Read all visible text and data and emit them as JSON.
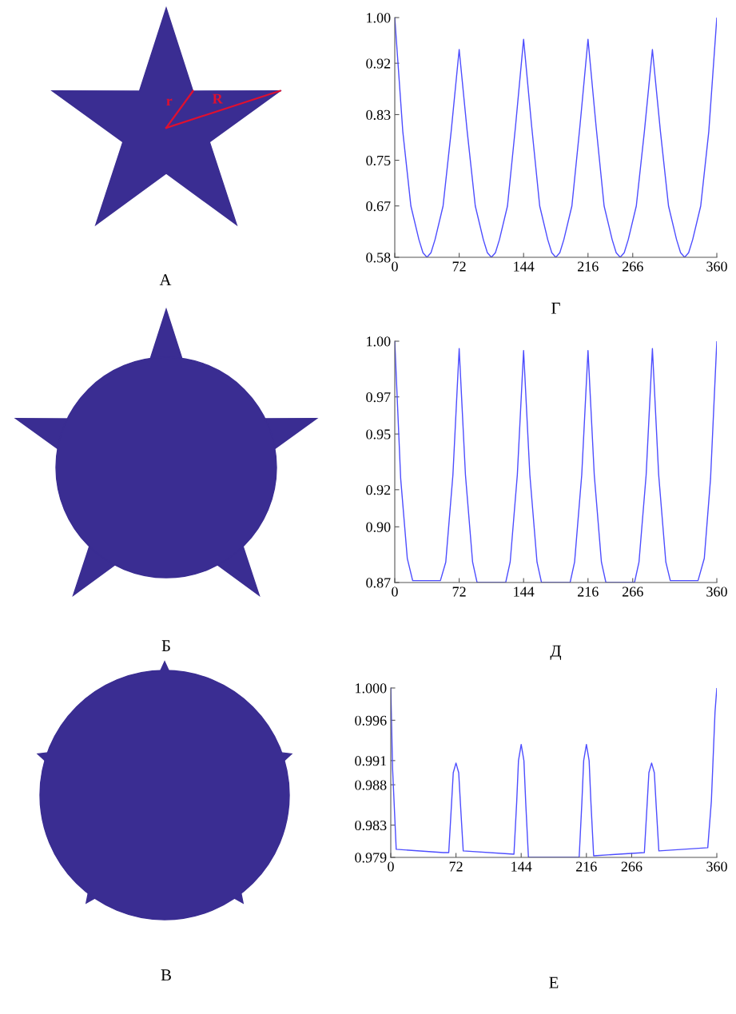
{
  "chart_data": [
    {
      "type": "line",
      "xlabel": "Г",
      "annotations": [
        "А",
        "r",
        "R"
      ],
      "xlim": [
        0,
        360
      ],
      "ylim": [
        0.58,
        1.0
      ],
      "xticks": [
        0,
        72,
        144,
        216,
        266,
        360
      ],
      "yticks": [
        {
          "value": 0.58,
          "label": "0.58"
        },
        {
          "value": 0.67,
          "label": "0.67"
        },
        {
          "value": 0.75,
          "label": "0.75"
        },
        {
          "value": 0.83,
          "label": "0.83"
        },
        {
          "value": 0.92,
          "label": "0.92"
        },
        {
          "value": 1.0,
          "label": "1.00"
        }
      ],
      "series": [
        {
          "color": "#4d4dff",
          "x": [
            0,
            9,
            18,
            27,
            31.5,
            36,
            40.5,
            45,
            54,
            63,
            72,
            81,
            90,
            99,
            103.5,
            108,
            112.5,
            117,
            126,
            135,
            144,
            153,
            162,
            171,
            175.5,
            180,
            184.5,
            189,
            198,
            207,
            216,
            225,
            234,
            243,
            247.5,
            252,
            256.5,
            261,
            270,
            279,
            288,
            297,
            306,
            315,
            319.5,
            324,
            328.5,
            333,
            342,
            351,
            360
          ],
          "values": [
            1.0,
            0.8,
            0.67,
            0.611,
            0.588,
            0.58,
            0.588,
            0.611,
            0.67,
            0.8,
            0.944,
            0.8,
            0.67,
            0.611,
            0.588,
            0.58,
            0.588,
            0.611,
            0.67,
            0.81,
            0.962,
            0.81,
            0.67,
            0.611,
            0.588,
            0.58,
            0.588,
            0.611,
            0.67,
            0.81,
            0.962,
            0.81,
            0.67,
            0.611,
            0.588,
            0.58,
            0.588,
            0.611,
            0.67,
            0.8,
            0.944,
            0.8,
            0.67,
            0.611,
            0.588,
            0.58,
            0.588,
            0.611,
            0.67,
            0.8,
            1.0
          ]
        }
      ]
    },
    {
      "type": "line",
      "xlabel": "Д",
      "annotations": [
        "Б"
      ],
      "xlim": [
        0,
        360
      ],
      "ylim": [
        0.87,
        1.0
      ],
      "xticks": [
        0,
        72,
        144,
        216,
        266,
        360
      ],
      "yticks": [
        0.87,
        {
          "value": 0.9,
          "label": "0.90"
        },
        {
          "value": 0.92,
          "label": "0.92"
        },
        {
          "value": 0.95,
          "label": "0.95"
        },
        {
          "value": 0.97,
          "label": "0.97"
        },
        {
          "value": 1.0,
          "label": "1.00"
        }
      ],
      "series": [
        {
          "color": "#4d4dff",
          "x": [
            0,
            6.6,
            14,
            20,
            51,
            57,
            65,
            72,
            79,
            87,
            92,
            124,
            129,
            137,
            144,
            151,
            159,
            164,
            196,
            201,
            209,
            216,
            223,
            231,
            236,
            268,
            273,
            281,
            288,
            295,
            303,
            308,
            339,
            346,
            353,
            360
          ],
          "values": [
            1.0,
            0.926,
            0.883,
            0.871,
            0.871,
            0.881,
            0.928,
            0.996,
            0.928,
            0.881,
            0.87,
            0.87,
            0.881,
            0.928,
            0.995,
            0.928,
            0.881,
            0.87,
            0.87,
            0.881,
            0.928,
            0.995,
            0.928,
            0.881,
            0.87,
            0.87,
            0.881,
            0.928,
            0.996,
            0.928,
            0.881,
            0.871,
            0.871,
            0.883,
            0.926,
            1.0
          ]
        }
      ]
    },
    {
      "type": "line",
      "xlabel": "Е",
      "annotations": [
        "В"
      ],
      "xlim": [
        0,
        360
      ],
      "ylim": [
        0.979,
        1.0
      ],
      "xticks": [
        0,
        72,
        144,
        216,
        266,
        360
      ],
      "yticks": [
        0.979,
        0.983,
        0.988,
        0.991,
        0.996,
        {
          "value": 1.0,
          "label": "1.000"
        }
      ],
      "series": [
        {
          "color": "#4d4dff",
          "x": [
            0,
            2,
            6,
            58,
            64,
            67,
            69,
            72,
            75,
            77,
            80,
            136,
            139,
            141,
            144,
            147,
            149,
            152,
            208,
            211,
            213,
            216,
            219,
            221,
            224,
            280,
            283,
            285,
            288,
            291,
            293,
            296,
            350,
            354,
            358,
            360
          ],
          "values": [
            1.0,
            0.99,
            0.98,
            0.9796,
            0.9796,
            0.9855,
            0.9895,
            0.9907,
            0.9895,
            0.9855,
            0.9798,
            0.9794,
            0.9858,
            0.991,
            0.993,
            0.991,
            0.9858,
            0.979,
            0.979,
            0.9858,
            0.991,
            0.993,
            0.991,
            0.9858,
            0.9792,
            0.9796,
            0.9855,
            0.9895,
            0.9907,
            0.9895,
            0.9855,
            0.9798,
            0.9802,
            0.986,
            0.997,
            1.0
          ]
        }
      ]
    }
  ]
}
